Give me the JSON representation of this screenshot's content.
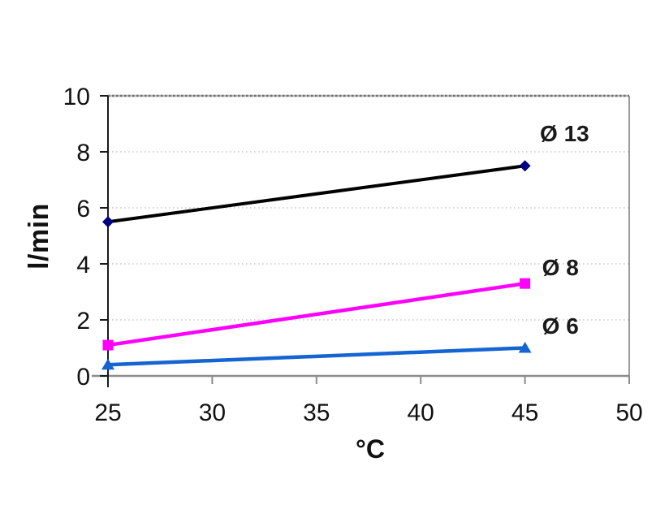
{
  "chart_data": {
    "type": "line",
    "title": "",
    "xlabel": "°C",
    "ylabel": "l/min",
    "x": [
      25,
      45
    ],
    "xlim": [
      25,
      50
    ],
    "ylim": [
      0,
      10
    ],
    "x_ticks": [
      "25",
      "30",
      "35",
      "40",
      "45",
      "50"
    ],
    "x_tick_values": [
      25,
      30,
      35,
      40,
      45,
      50
    ],
    "y_ticks": [
      "0",
      "2",
      "4",
      "6",
      "8",
      "10"
    ],
    "y_tick_values": [
      0,
      2,
      4,
      6,
      8,
      10
    ],
    "grid": "horizontal dotted gridlines at y = 2,4,6,8,10",
    "legend_position": "inline labels right of last data point",
    "series": [
      {
        "name": "Ø 13",
        "values": [
          5.5,
          7.5
        ],
        "line_color": "#000000",
        "line_width": 4,
        "marker": "diamond",
        "marker_color": "#000080",
        "label_anchor": {
          "x": 46.9,
          "y": 8.65
        }
      },
      {
        "name": "Ø 8",
        "values": [
          1.1,
          3.3
        ],
        "line_color": "#FF00FF",
        "line_width": 4.5,
        "marker": "square",
        "marker_color": "#FF00FF",
        "label_anchor": {
          "x": 46.7,
          "y": 3.85
        }
      },
      {
        "name": "Ø 6",
        "values": [
          0.4,
          1.0
        ],
        "line_color": "#1464D2",
        "line_width": 4.5,
        "marker": "triangle",
        "marker_color": "#1464D2",
        "label_anchor": {
          "x": 46.7,
          "y": 1.77
        }
      }
    ],
    "colors": {
      "background": "#ffffff",
      "y_axis": "#1a1a1a",
      "x_axis": "#8c8c8c",
      "plot_border": "#9a9a9a",
      "gridline": "#c9c9c9",
      "tick_text": "#111111",
      "label_text": "#1a1a1a"
    }
  }
}
